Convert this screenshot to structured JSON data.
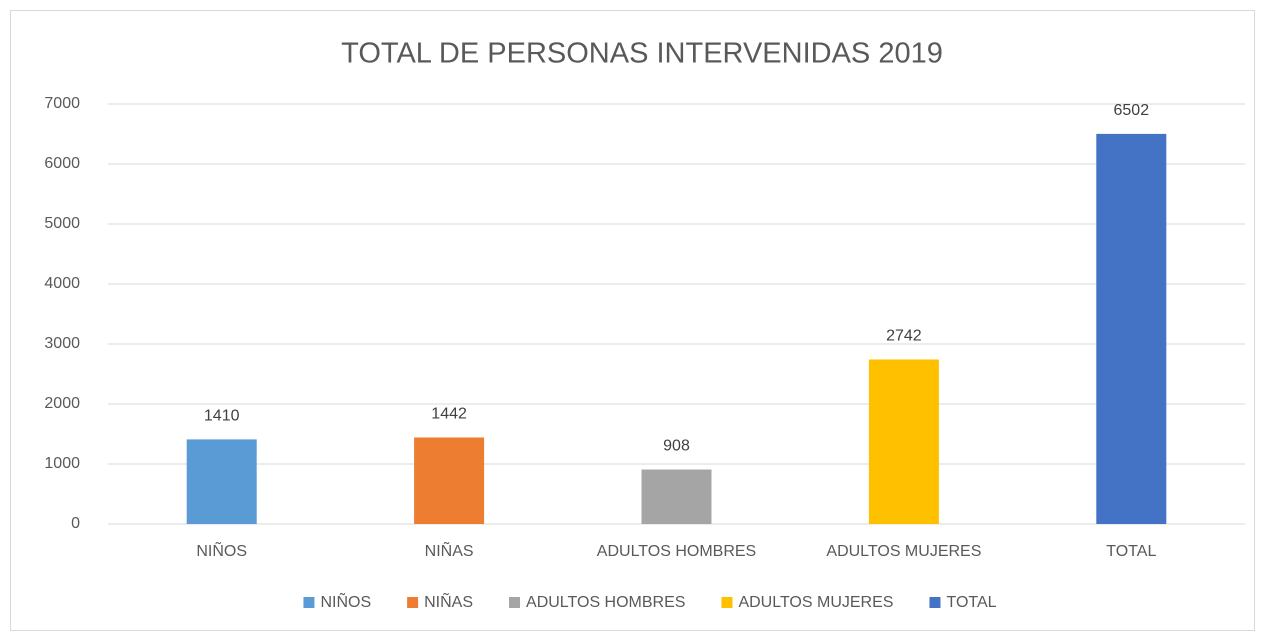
{
  "chart_data": {
    "type": "bar",
    "title": "TOTAL DE PERSONAS INTERVENIDAS 2019",
    "categories": [
      "NIÑOS",
      "NIÑAS",
      "ADULTOS HOMBRES",
      "ADULTOS MUJERES",
      "TOTAL"
    ],
    "values": [
      1410,
      1442,
      908,
      2742,
      6502
    ],
    "colors": [
      "#5b9bd5",
      "#ed7d31",
      "#a5a5a5",
      "#ffc000",
      "#4472c4"
    ],
    "ylim": [
      0,
      7000
    ],
    "yticks": [
      0,
      1000,
      2000,
      3000,
      4000,
      5000,
      6000,
      7000
    ],
    "grid": true,
    "legend": "bottom"
  }
}
